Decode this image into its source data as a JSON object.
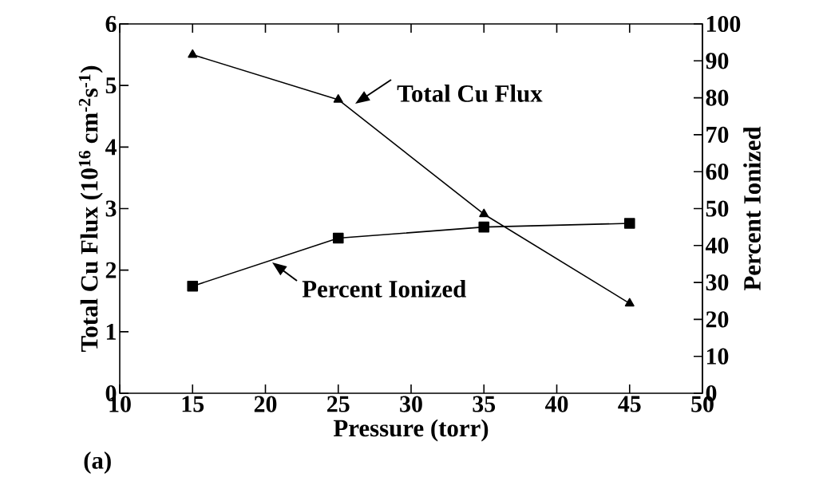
{
  "chart_data": {
    "type": "line",
    "xlabel": "Pressure (torr)",
    "ylabel": "Total Cu Flux (10$^{16}$ cm$^{-2}$s$^{-1}$)",
    "y2label": "Percent Ionized",
    "x": [
      15,
      25,
      35,
      45
    ],
    "series": [
      {
        "color": "#000000",
        "marker": "triangle",
        "values": [
          5.5,
          4.77,
          2.91,
          1.46
        ]
      },
      {
        "color": "#000000",
        "marker": "square",
        "axis": "y2",
        "values": [
          29,
          42,
          45,
          46
        ]
      }
    ],
    "xlim": [
      10,
      50
    ],
    "xticks": [
      10,
      15,
      20,
      25,
      30,
      35,
      40,
      45,
      50
    ],
    "ylim": [
      0,
      6
    ],
    "yticks": [
      0,
      1,
      2,
      3,
      4,
      5,
      6
    ],
    "y2lim": [
      0,
      100
    ],
    "y2ticks": [
      0,
      10,
      20,
      30,
      40,
      50,
      60,
      70,
      80,
      90,
      100
    ],
    "annotations": [
      "Total Cu Flux",
      "Percent Ionized",
      "(a)"
    ],
    "grid": false
  }
}
